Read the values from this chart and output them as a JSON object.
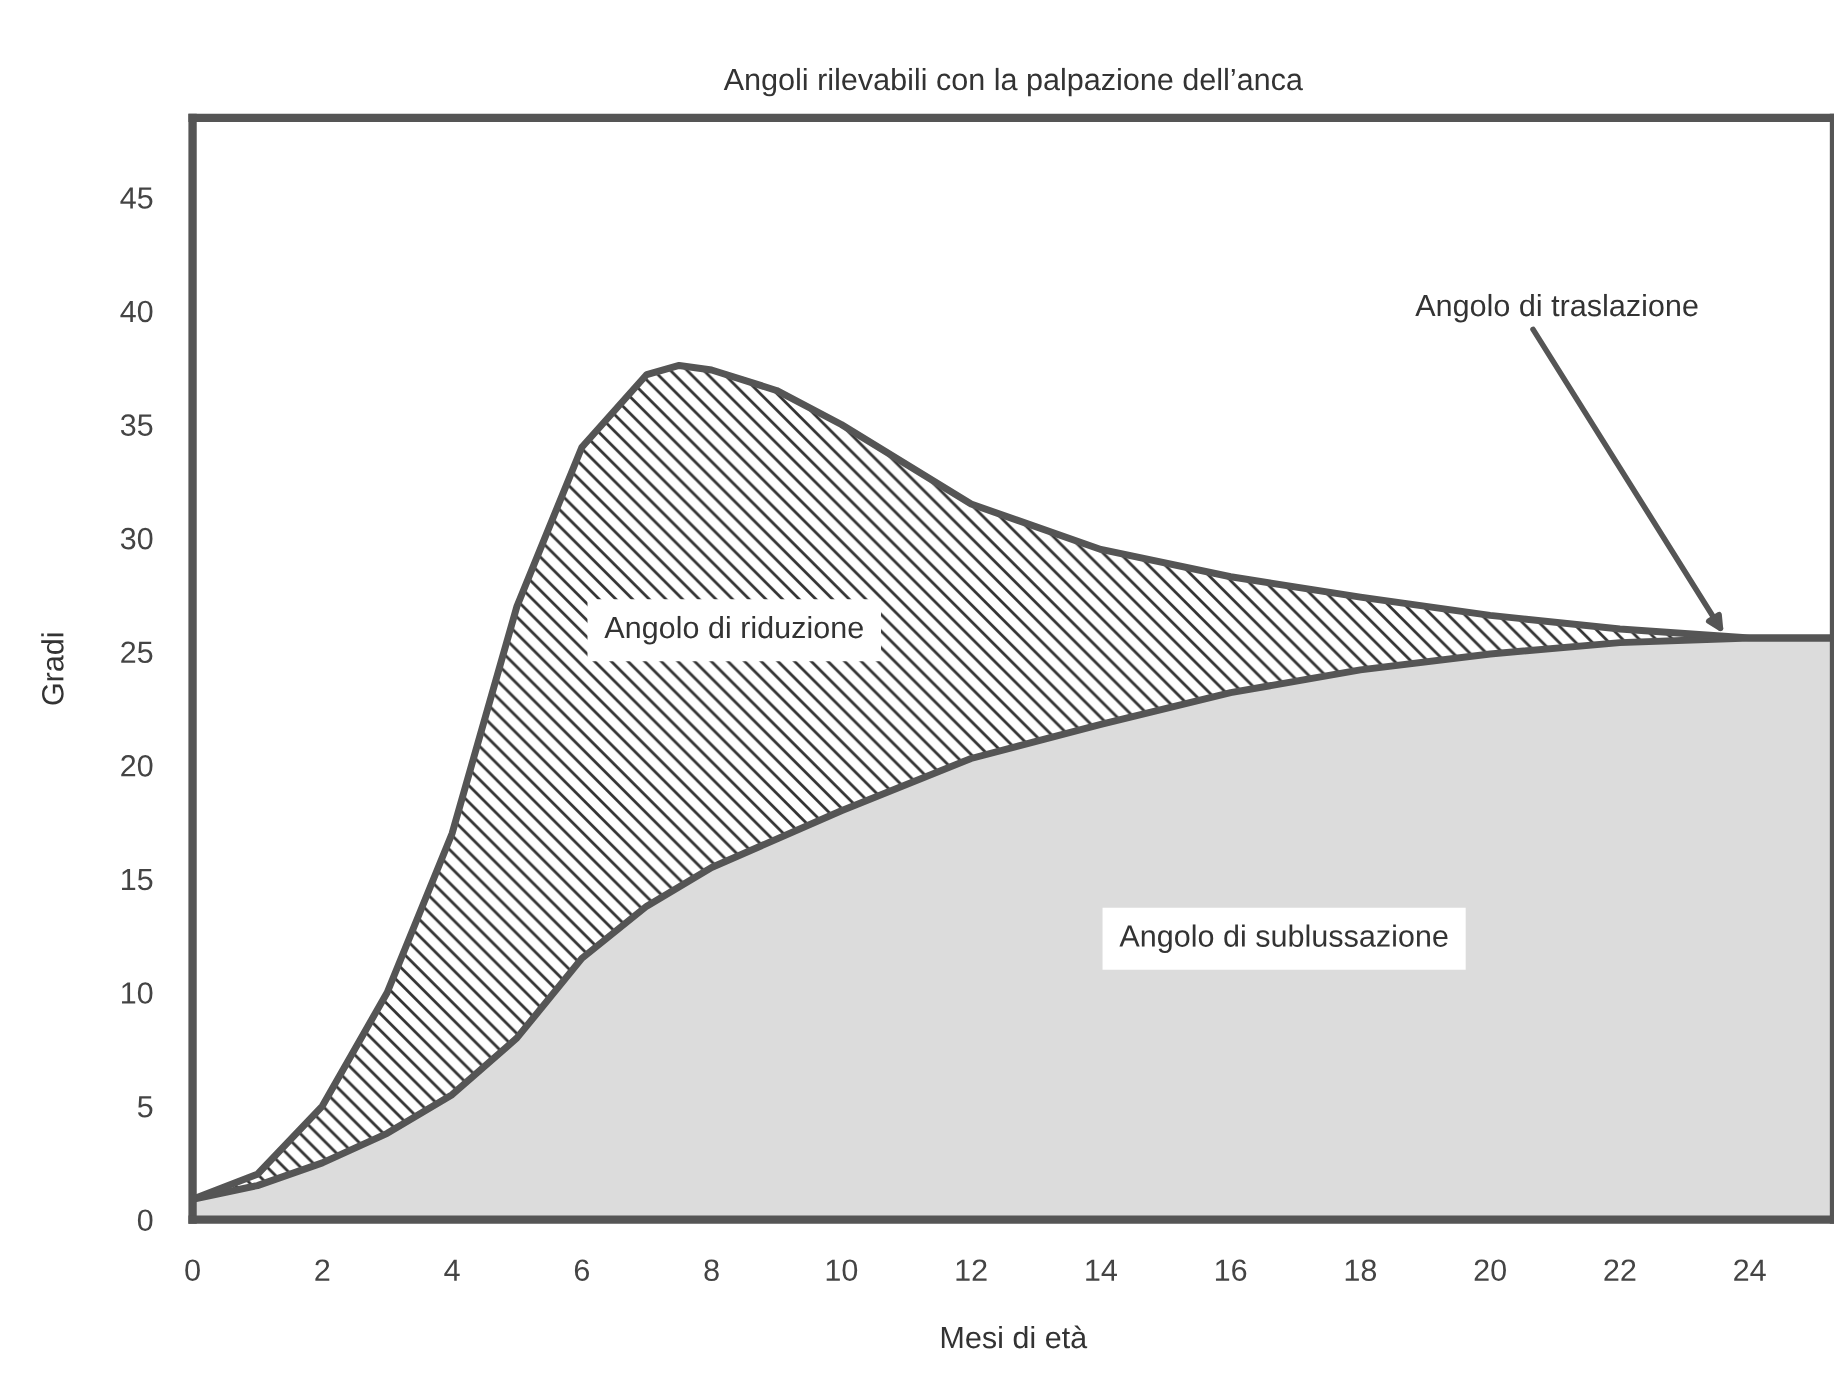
{
  "chart_data": {
    "type": "area",
    "title": "Angoli rilevabili con la palpazione dell’anca",
    "xlabel": "Mesi di età",
    "ylabel": "Gradi",
    "series": [
      {
        "color": "#dcdcdc",
        "x": [
          0,
          1,
          2,
          3,
          4,
          5,
          6,
          7,
          8,
          10,
          12,
          14,
          16,
          18,
          20,
          22,
          24,
          25.3
        ],
        "values": [
          0.9,
          1.5,
          2.5,
          3.8,
          5.5,
          8,
          11.5,
          13.8,
          15.5,
          18,
          20.3,
          21.8,
          23.2,
          24.2,
          24.9,
          25.4,
          25.6,
          25.6
        ]
      },
      {
        "color": "#ffffff",
        "x": [
          0,
          1,
          2,
          3,
          4,
          5,
          6,
          7,
          7.5,
          8,
          9,
          10,
          12,
          14,
          16,
          18,
          20,
          22,
          24,
          25.3
        ],
        "values": [
          0.9,
          2,
          5,
          10,
          17,
          27,
          34,
          37.2,
          37.6,
          37.4,
          36.5,
          35,
          31.5,
          29.5,
          28.3,
          27.4,
          26.6,
          26,
          25.6,
          25.6
        ]
      }
    ],
    "annotations": [
      "Angolo di riduzione",
      "Angolo di sublussazione",
      {
        "text": "Angolo di traslazione",
        "x": 23.6,
        "y": 25.8
      }
    ],
    "xlim": [
      0,
      25.3
    ],
    "ylim": [
      0,
      48.5
    ],
    "xticks": [
      0,
      2,
      4,
      6,
      8,
      10,
      12,
      14,
      16,
      18,
      20,
      22,
      24
    ],
    "yticks": [
      0,
      5,
      10,
      15,
      20,
      25,
      30,
      35,
      40,
      45
    ],
    "grid": false,
    "legend": false
  }
}
